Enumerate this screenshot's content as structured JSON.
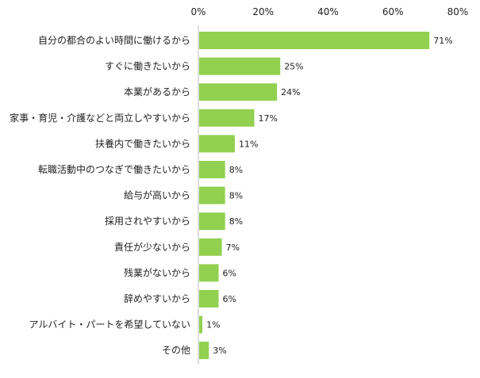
{
  "chart_data": {
    "type": "bar",
    "orientation": "horizontal",
    "title": "",
    "xlabel": "",
    "ylabel": "",
    "xlim": [
      0,
      80
    ],
    "ticks": [
      "0%",
      "20%",
      "40%",
      "60%",
      "80%"
    ],
    "tick_values": [
      0,
      20,
      40,
      60,
      80
    ],
    "grid": false,
    "legend": "none",
    "bar_color": "#92d050",
    "categories": [
      "自分の都合のよい時間に働けるから",
      "すぐに働きたいから",
      "本業があるから",
      "家事・育児・介護などと両立しやすいから",
      "扶養内で働きたいから",
      "転職活動中のつなぎで働きたいから",
      "給与が高いから",
      "採用されやすいから",
      "責任が少ないから",
      "残業がないから",
      "辞めやすいから",
      "アルバイト・パートを希望していない",
      "その他"
    ],
    "values": [
      71,
      25,
      24,
      17,
      11,
      8,
      8,
      8,
      7,
      6,
      6,
      1,
      3
    ],
    "value_labels": [
      "71%",
      "25%",
      "24%",
      "17%",
      "11%",
      "8%",
      "8%",
      "8%",
      "7%",
      "6%",
      "6%",
      "1%",
      "3%"
    ]
  }
}
